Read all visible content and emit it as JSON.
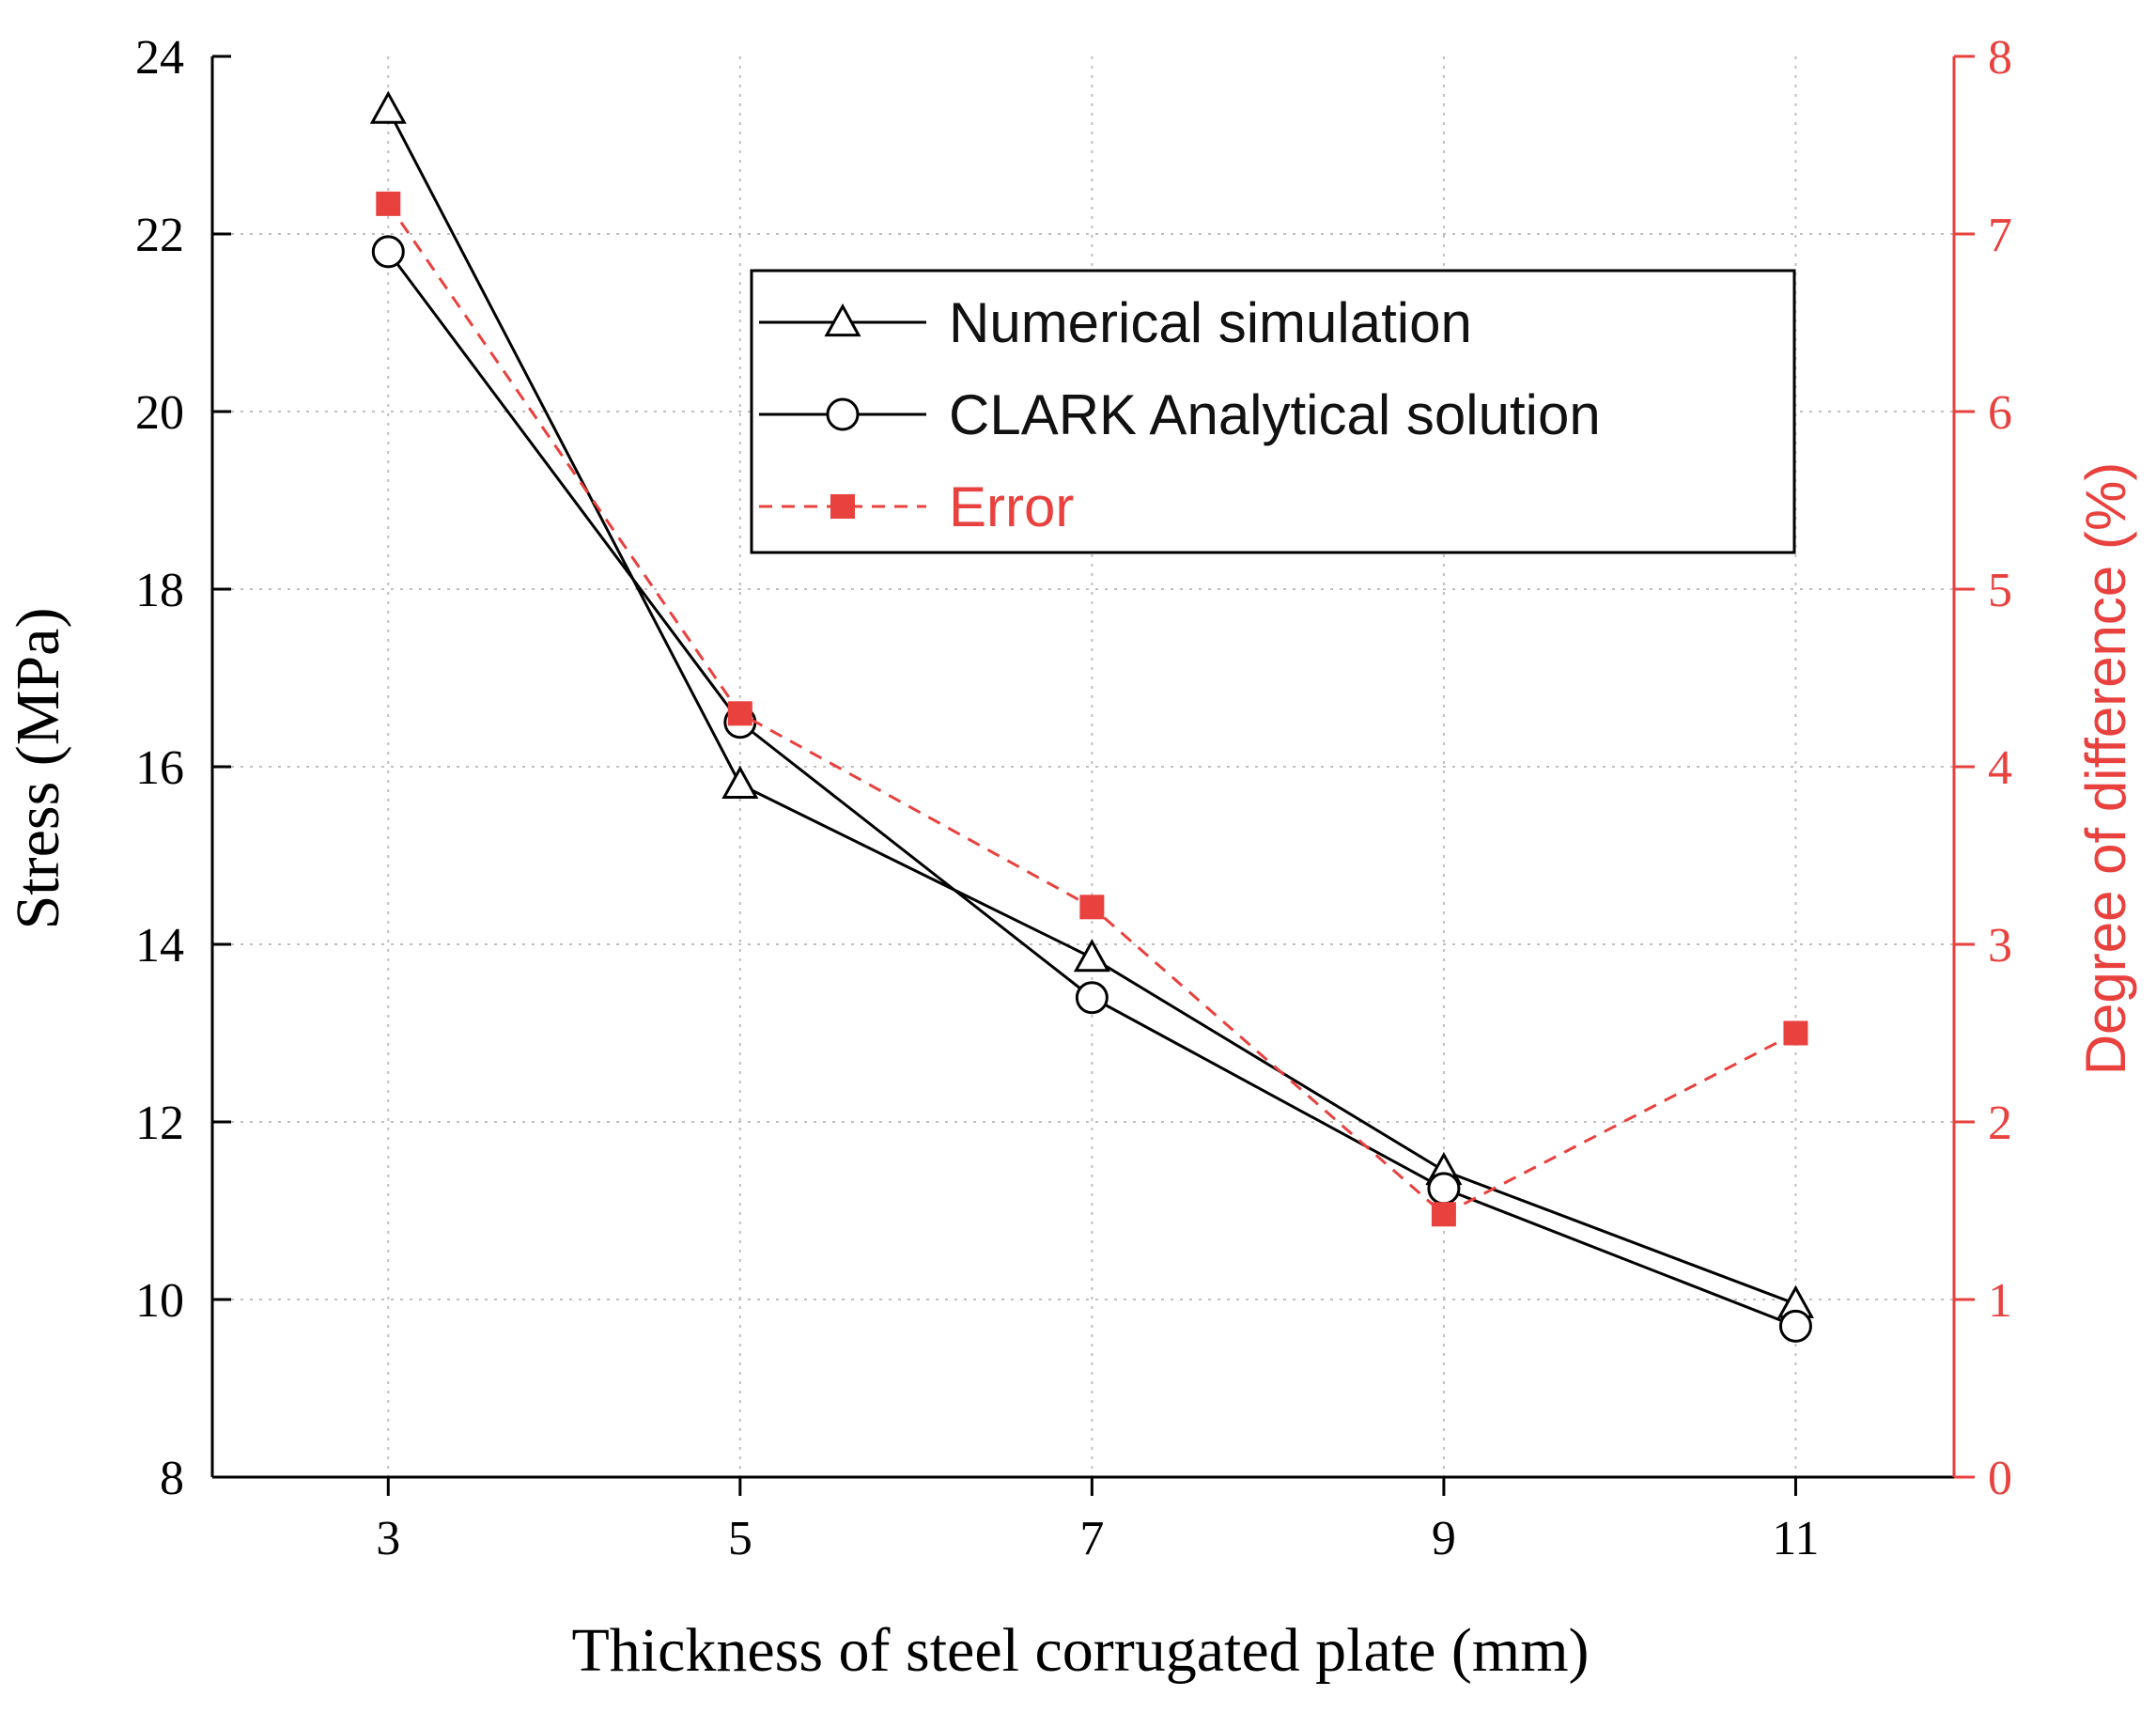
{
  "chart_data": {
    "type": "line",
    "title": "",
    "xlabel": "Thickness of steel corrugated plate (mm)",
    "ylabel": "Stress (MPa)",
    "y2label": "Degree of difference (%)",
    "x": [
      3,
      5,
      7,
      9,
      11
    ],
    "xlim": [
      2,
      11.9
    ],
    "ylim": [
      8,
      24
    ],
    "y2lim": [
      0,
      8
    ],
    "x_ticks": [
      "3",
      "5",
      "7",
      "9",
      "11"
    ],
    "y_ticks": [
      "8",
      "10",
      "12",
      "14",
      "16",
      "18",
      "20",
      "22",
      "24"
    ],
    "y2_ticks": [
      "0",
      "1",
      "2",
      "3",
      "4",
      "5",
      "6",
      "7",
      "8"
    ],
    "grid": true,
    "legend_position": "top-right",
    "series": [
      {
        "name": "Numerical simulation",
        "axis": "left",
        "marker": "triangle",
        "style": "solid",
        "color": "#000000",
        "values": [
          23.4,
          15.8,
          13.85,
          11.45,
          9.95
        ]
      },
      {
        "name": "CLARK Analytical solution",
        "axis": "left",
        "marker": "circle",
        "style": "solid",
        "color": "#000000",
        "values": [
          21.8,
          16.5,
          13.4,
          11.25,
          9.7
        ]
      },
      {
        "name": "Error",
        "axis": "right",
        "marker": "square",
        "style": "dashed",
        "color": "#e8413e",
        "values": [
          7.17,
          4.3,
          3.21,
          1.48,
          2.5
        ]
      }
    ],
    "colors": {
      "accent": "#e8413e",
      "axis": "#000000",
      "grid": "#bfbfbf"
    }
  }
}
